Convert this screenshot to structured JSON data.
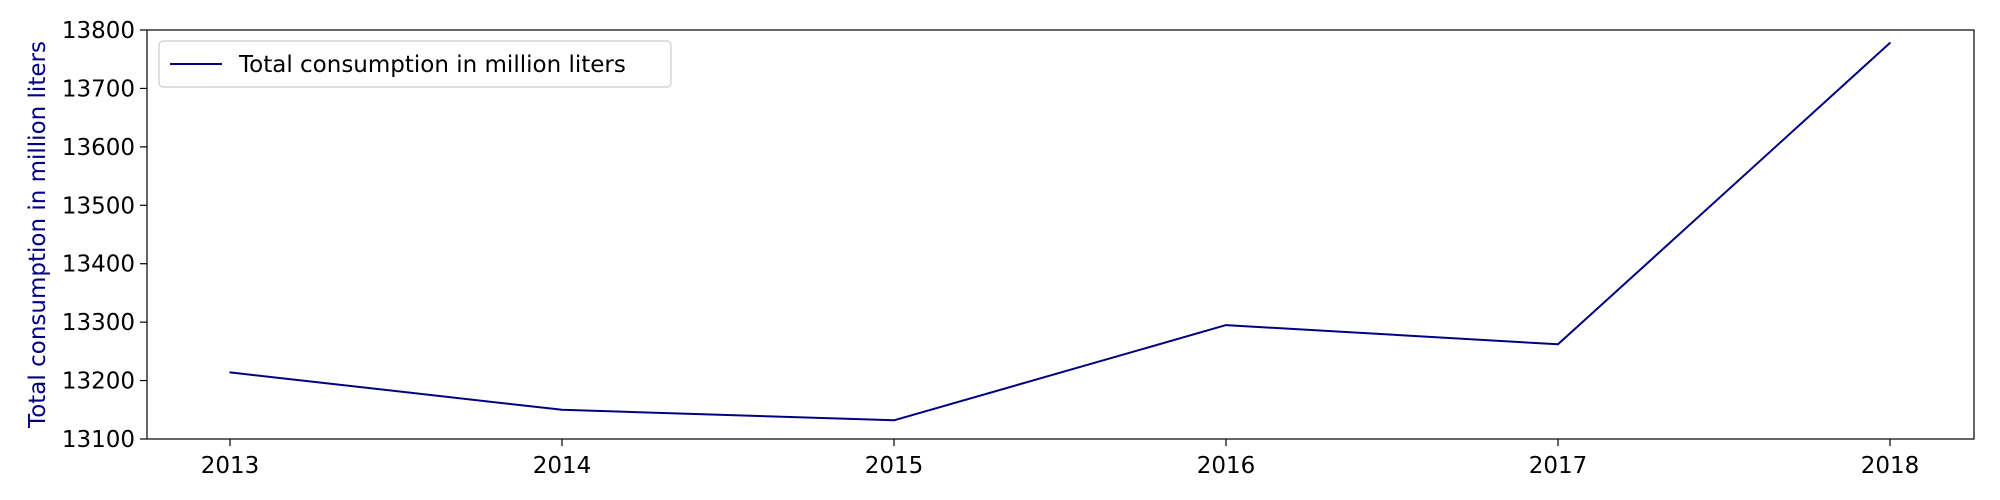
{
  "chart_data": {
    "type": "line",
    "title": "",
    "xlabel": "",
    "ylabel": "Total consumption in million liters",
    "x": [
      "2013",
      "2014",
      "2015",
      "2016",
      "2017",
      "2018"
    ],
    "series": [
      {
        "name": "Total consumption in million liters",
        "values": [
          13214,
          13150,
          13132,
          13295,
          13262,
          13778
        ],
        "color": "#000080"
      }
    ],
    "ylim": [
      13100,
      13800
    ],
    "yticks": [
      "13100",
      "13200",
      "13300",
      "13400",
      "13500",
      "13600",
      "13700",
      "13800"
    ],
    "grid": false,
    "legend_position": "top-left",
    "colors": {
      "line": "#000080",
      "ylabel": "#000080",
      "axes": "#000000"
    }
  }
}
